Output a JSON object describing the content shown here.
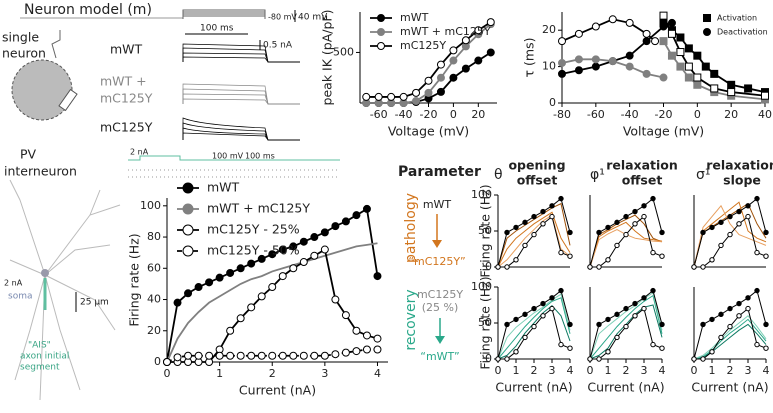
{
  "panel_texts": {
    "model_title": "Neuron model (m)",
    "single": "single",
    "neuron": "neuron",
    "row_wt": "mWT",
    "row_mix1": "mWT +",
    "row_mix2": "mC125Y",
    "row_mut": "mC125Y",
    "vstep_low": "-80 mV",
    "vscale": "40 mV",
    "tscale": "100 ms",
    "iscale": "0.5 nA",
    "pv1": "PV",
    "pv2": "interneuron",
    "stim": "2 nA",
    "soma": "soma",
    "um": "25 µm",
    "ais1": "\"AIS\"",
    "ais2": "axon initial",
    "ais3": "segment",
    "raster_stim": "2 nA",
    "raster_v": "100 mV",
    "raster_t": "100 ms",
    "parameter": "Parameter",
    "theta": "θ",
    "theta_1": "opening",
    "theta_2": "offset",
    "phi": "φ¹",
    "phi_1": "relaxation",
    "phi_2": "offset",
    "sigma": "σ¹",
    "sigma_1": "relaxation",
    "sigma_2": "slope",
    "pathology": "pathology",
    "path_from": "mWT",
    "path_to": "“mC125Y”",
    "recovery": "recovery",
    "rec_from1": "mC125Y",
    "rec_from2": "(25 %)",
    "rec_to": "“mWT”"
  },
  "chart_data": [
    {
      "type": "line",
      "y_label": "peak IK (pA/pF)",
      "x_label": "Voltage (mV)",
      "x": [
        -70,
        -60,
        -50,
        -40,
        -30,
        -20,
        -10,
        0,
        10,
        20,
        30
      ],
      "xlim": [
        -75,
        35
      ],
      "xticks": [
        -60,
        -40,
        -20,
        0,
        20
      ],
      "ylim": [
        0,
        900
      ],
      "yticks": [
        500
      ],
      "legend": "upper-left",
      "series": [
        {
          "name": "mWT",
          "color": "#000000",
          "marker": "circle",
          "marker_fill": "#000000",
          "values": [
            0,
            0,
            0,
            0,
            10,
            45,
            110,
            250,
            340,
            420,
            500
          ]
        },
        {
          "name": "mWT + mC125Y",
          "color": "#808080",
          "marker": "circle",
          "marker_fill": "#808080",
          "values": [
            0,
            0,
            0,
            0,
            20,
            100,
            250,
            420,
            560,
            680,
            780
          ]
        },
        {
          "name": "mC125Y",
          "color": "#000000",
          "marker": "circle",
          "marker_fill": "#ffffff",
          "values": [
            60,
            60,
            60,
            60,
            100,
            220,
            380,
            520,
            620,
            720,
            800
          ]
        }
      ]
    },
    {
      "type": "line",
      "y_label": "τ (ms)",
      "x_label": "Voltage (mV)",
      "xlim": [
        -80,
        40
      ],
      "xticks": [
        -80,
        -60,
        -40,
        -20,
        0,
        20,
        40
      ],
      "ylim": [
        0,
        25
      ],
      "yticks": [
        0,
        10,
        20
      ],
      "legend": "upper-right",
      "series": [
        {
          "name": "Activation",
          "color": "#000000",
          "marker": "square",
          "marker_fill": "#000000",
          "x": [
            -20,
            -15,
            -10,
            -5,
            0,
            5,
            10,
            20,
            30,
            40
          ],
          "values": [
            22,
            20,
            18,
            15,
            13,
            10,
            8,
            5,
            4,
            3
          ]
        },
        {
          "name": "Deactivation",
          "color": "#000000",
          "marker": "circle",
          "marker_fill": "#000000",
          "x": [
            -80,
            -70,
            -60,
            -50,
            -40,
            -30,
            -20,
            -15
          ],
          "values": [
            8,
            9,
            10,
            11.5,
            13,
            17,
            21,
            22
          ]
        },
        {
          "color": "#808080",
          "marker": "square",
          "marker_fill": "#808080",
          "x": [
            -20,
            -15,
            -10,
            -5,
            0,
            10,
            20,
            40
          ],
          "values": [
            17,
            13,
            10,
            7,
            5,
            3,
            2,
            1
          ]
        },
        {
          "color": "#808080",
          "marker": "circle",
          "marker_fill": "#808080",
          "x": [
            -80,
            -70,
            -60,
            -50,
            -40,
            -30,
            -20
          ],
          "values": [
            11,
            12,
            12,
            11.5,
            10,
            8,
            7
          ]
        },
        {
          "color": "#000000",
          "marker": "square",
          "marker_fill": "#ffffff",
          "x": [
            -20,
            -15,
            -10,
            -5,
            0,
            10,
            20,
            40
          ],
          "values": [
            24,
            19,
            14,
            10,
            7,
            4,
            3,
            2
          ]
        },
        {
          "color": "#000000",
          "marker": "circle",
          "marker_fill": "#ffffff",
          "x": [
            -80,
            -70,
            -60,
            -50,
            -40,
            -30,
            -25
          ],
          "values": [
            17,
            19,
            21,
            23,
            22,
            19,
            17
          ]
        }
      ]
    },
    {
      "type": "line",
      "y_label": "Firing rate (Hz)",
      "x_label": "Current (nA)",
      "x": [
        0,
        0.2,
        0.4,
        0.6,
        0.8,
        1.0,
        1.2,
        1.4,
        1.6,
        1.8,
        2.0,
        2.2,
        2.4,
        2.6,
        2.8,
        3.0,
        3.2,
        3.4,
        3.6,
        3.8,
        4.0
      ],
      "xlim": [
        0,
        4.2
      ],
      "xticks": [
        0,
        1,
        2,
        3,
        4
      ],
      "ylim": [
        0,
        105
      ],
      "yticks": [
        0,
        20,
        40,
        60,
        80,
        100
      ],
      "legend": "upper-left",
      "series": [
        {
          "name": "mWT",
          "color": "#000000",
          "marker": "circle",
          "marker_fill": "#000000",
          "values": [
            0,
            38,
            44,
            48,
            51,
            54,
            57,
            60,
            63,
            66,
            69,
            72,
            74,
            77,
            80,
            83,
            87,
            90,
            94,
            98,
            55
          ]
        },
        {
          "name": "mWT + mC125Y",
          "color": "#808080",
          "marker": "none",
          "marker_fill": "#808080",
          "values": [
            0,
            15,
            25,
            32,
            38,
            42,
            46,
            50,
            53,
            55,
            58,
            60,
            62,
            64,
            66,
            68,
            70,
            72,
            74,
            75,
            76
          ]
        },
        {
          "name": "mC125Y - 25%",
          "color": "#000000",
          "marker": "circle",
          "marker_fill": "#ffffff",
          "values": [
            0,
            0,
            0,
            0,
            0,
            8,
            20,
            28,
            35,
            42,
            48,
            55,
            60,
            64,
            68,
            72,
            40,
            30,
            20,
            17,
            15
          ]
        },
        {
          "name": "mC125Y - 50%",
          "color": "#000000",
          "marker": "circle",
          "marker_fill": "#ffffff",
          "dash": true,
          "values": [
            0,
            3,
            4,
            4,
            4,
            4,
            4,
            4,
            4,
            4,
            4,
            4,
            4,
            4,
            4,
            4,
            5,
            6,
            7,
            8,
            8
          ]
        }
      ]
    },
    {
      "type": "line",
      "y_label": "Firing rate (Hz)",
      "x": [
        0,
        0.5,
        1,
        1.5,
        2,
        2.5,
        3,
        3.5,
        4
      ],
      "xlim": [
        0,
        4
      ],
      "ylim": [
        0,
        100
      ],
      "yticks": [
        0,
        50,
        100
      ],
      "series": [
        {
          "color": "#a0520a",
          "marker": "none",
          "values": [
            0,
            40,
            50,
            58,
            66,
            74,
            82,
            88,
            30
          ]
        },
        {
          "color": "#d2761e",
          "marker": "none",
          "values": [
            0,
            25,
            40,
            50,
            60,
            68,
            76,
            40,
            20
          ]
        },
        {
          "color": "#e8a060",
          "marker": "none",
          "values": [
            0,
            10,
            25,
            40,
            52,
            64,
            72,
            25,
            15
          ]
        },
        {
          "color": "#000000",
          "marker": "circle",
          "marker_fill": "#000000",
          "values": [
            0,
            48,
            55,
            62,
            70,
            77,
            85,
            95,
            48
          ]
        },
        {
          "color": "#000000",
          "marker": "circle",
          "marker_fill": "#ffffff",
          "values": [
            0,
            0,
            10,
            30,
            45,
            60,
            70,
            20,
            15
          ]
        }
      ]
    },
    {
      "type": "line",
      "x": [
        0,
        0.5,
        1,
        1.5,
        2,
        2.5,
        3,
        3.5,
        4
      ],
      "xlim": [
        0,
        4
      ],
      "ylim": [
        0,
        100
      ],
      "series": [
        {
          "color": "#a0520a",
          "marker": "none",
          "values": [
            0,
            45,
            52,
            60,
            66,
            72,
            60,
            40,
            35
          ]
        },
        {
          "color": "#d2761e",
          "marker": "none",
          "values": [
            0,
            42,
            50,
            56,
            62,
            50,
            40,
            38,
            36
          ]
        },
        {
          "color": "#e8a060",
          "marker": "none",
          "values": [
            0,
            38,
            46,
            52,
            45,
            40,
            38,
            36,
            35
          ]
        },
        {
          "color": "#000000",
          "marker": "circle",
          "marker_fill": "#000000",
          "values": [
            0,
            48,
            55,
            62,
            70,
            77,
            85,
            95,
            48
          ]
        },
        {
          "color": "#000000",
          "marker": "circle",
          "marker_fill": "#ffffff",
          "values": [
            0,
            0,
            10,
            30,
            45,
            60,
            70,
            20,
            15
          ]
        }
      ]
    },
    {
      "type": "line",
      "x": [
        0,
        0.5,
        1,
        1.5,
        2,
        2.5,
        3,
        3.5,
        4
      ],
      "xlim": [
        0,
        4
      ],
      "ylim": [
        0,
        100
      ],
      "series": [
        {
          "color": "#a0520a",
          "marker": "none",
          "values": [
            0,
            48,
            56,
            64,
            72,
            80,
            88,
            60,
            40
          ]
        },
        {
          "color": "#d2761e",
          "marker": "none",
          "values": [
            0,
            50,
            60,
            70,
            80,
            90,
            50,
            40,
            35
          ]
        },
        {
          "color": "#e8a060",
          "marker": "none",
          "values": [
            0,
            55,
            70,
            85,
            60,
            45,
            40,
            35,
            30
          ]
        },
        {
          "color": "#000000",
          "marker": "circle",
          "marker_fill": "#000000",
          "values": [
            0,
            48,
            55,
            62,
            70,
            77,
            85,
            95,
            48
          ]
        },
        {
          "color": "#000000",
          "marker": "circle",
          "marker_fill": "#ffffff",
          "values": [
            0,
            0,
            10,
            30,
            45,
            60,
            70,
            20,
            15
          ]
        }
      ]
    },
    {
      "type": "line",
      "y_label": "Firing rate (Hz)",
      "x_label": "Current (nA)",
      "x": [
        0,
        0.5,
        1,
        1.5,
        2,
        2.5,
        3,
        3.5,
        4
      ],
      "xlim": [
        0,
        4
      ],
      "xticks": [
        0,
        1,
        2,
        3,
        4
      ],
      "ylim": [
        0,
        100
      ],
      "yticks": [
        0,
        50,
        100
      ],
      "series": [
        {
          "color": "#0d7a62",
          "marker": "none",
          "values": [
            0,
            5,
            18,
            36,
            50,
            64,
            74,
            60,
            25
          ]
        },
        {
          "color": "#2aa88a",
          "marker": "none",
          "values": [
            0,
            15,
            30,
            45,
            58,
            70,
            80,
            85,
            35
          ]
        },
        {
          "color": "#80d0b8",
          "marker": "none",
          "values": [
            0,
            30,
            44,
            54,
            64,
            72,
            82,
            90,
            40
          ]
        },
        {
          "color": "#000000",
          "marker": "circle",
          "marker_fill": "#000000",
          "values": [
            0,
            48,
            55,
            62,
            70,
            77,
            85,
            95,
            48
          ]
        },
        {
          "color": "#000000",
          "marker": "circle",
          "marker_fill": "#ffffff",
          "values": [
            0,
            0,
            10,
            30,
            45,
            60,
            70,
            20,
            15
          ]
        }
      ]
    },
    {
      "type": "line",
      "x_label": "Current (nA)",
      "x": [
        0,
        0.5,
        1,
        1.5,
        2,
        2.5,
        3,
        3.5,
        4
      ],
      "xlim": [
        0,
        4
      ],
      "xticks": [
        0,
        1,
        2,
        3,
        4
      ],
      "ylim": [
        0,
        100
      ],
      "series": [
        {
          "color": "#0d7a62",
          "marker": "none",
          "values": [
            0,
            5,
            15,
            35,
            48,
            62,
            72,
            75,
            30
          ]
        },
        {
          "color": "#2aa88a",
          "marker": "none",
          "values": [
            0,
            15,
            30,
            45,
            58,
            70,
            80,
            88,
            35
          ]
        },
        {
          "color": "#80d0b8",
          "marker": "none",
          "values": [
            0,
            35,
            46,
            56,
            66,
            74,
            84,
            92,
            40
          ]
        },
        {
          "color": "#000000",
          "marker": "circle",
          "marker_fill": "#000000",
          "values": [
            0,
            48,
            55,
            62,
            70,
            77,
            85,
            95,
            48
          ]
        },
        {
          "color": "#000000",
          "marker": "circle",
          "marker_fill": "#ffffff",
          "values": [
            0,
            0,
            10,
            30,
            45,
            60,
            70,
            20,
            15
          ]
        }
      ]
    },
    {
      "type": "line",
      "x_label": "Current (nA)",
      "x": [
        0,
        0.5,
        1,
        1.5,
        2,
        2.5,
        3,
        3.5,
        4
      ],
      "xlim": [
        0,
        4
      ],
      "xticks": [
        0,
        1,
        2,
        3,
        4
      ],
      "ylim": [
        0,
        100
      ],
      "series": [
        {
          "color": "#0d7a62",
          "marker": "none",
          "values": [
            0,
            2,
            10,
            20,
            30,
            40,
            48,
            35,
            20
          ]
        },
        {
          "color": "#2aa88a",
          "marker": "none",
          "values": [
            0,
            3,
            12,
            25,
            36,
            45,
            55,
            40,
            25
          ]
        },
        {
          "color": "#80d0b8",
          "marker": "none",
          "values": [
            0,
            5,
            15,
            28,
            40,
            50,
            60,
            45,
            28
          ]
        },
        {
          "color": "#000000",
          "marker": "circle",
          "marker_fill": "#000000",
          "values": [
            0,
            48,
            55,
            62,
            70,
            77,
            85,
            95,
            48
          ]
        },
        {
          "color": "#000000",
          "marker": "circle",
          "marker_fill": "#ffffff",
          "values": [
            0,
            0,
            10,
            30,
            45,
            60,
            70,
            20,
            15
          ]
        }
      ]
    }
  ]
}
